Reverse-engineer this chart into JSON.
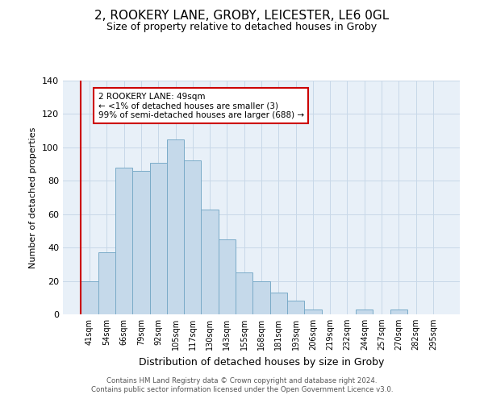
{
  "title": "2, ROOKERY LANE, GROBY, LEICESTER, LE6 0GL",
  "subtitle": "Size of property relative to detached houses in Groby",
  "xlabel": "Distribution of detached houses by size in Groby",
  "ylabel": "Number of detached properties",
  "bar_labels": [
    "41sqm",
    "54sqm",
    "66sqm",
    "79sqm",
    "92sqm",
    "105sqm",
    "117sqm",
    "130sqm",
    "143sqm",
    "155sqm",
    "168sqm",
    "181sqm",
    "193sqm",
    "206sqm",
    "219sqm",
    "232sqm",
    "244sqm",
    "257sqm",
    "270sqm",
    "282sqm",
    "295sqm"
  ],
  "bar_values": [
    20,
    37,
    88,
    86,
    91,
    105,
    92,
    63,
    45,
    25,
    20,
    13,
    8,
    3,
    0,
    0,
    3,
    0,
    3,
    0,
    0
  ],
  "bar_color": "#c5d9ea",
  "bar_edge_color": "#7aabc8",
  "highlight_color": "#cc0000",
  "ylim": [
    0,
    140
  ],
  "yticks": [
    0,
    20,
    40,
    60,
    80,
    100,
    120,
    140
  ],
  "annotation_title": "2 ROOKERY LANE: 49sqm",
  "annotation_line1": "← <1% of detached houses are smaller (3)",
  "annotation_line2": "99% of semi-detached houses are larger (688) →",
  "annotation_box_color": "#ffffff",
  "annotation_box_edge_color": "#cc0000",
  "footer_line1": "Contains HM Land Registry data © Crown copyright and database right 2024.",
  "footer_line2": "Contains public sector information licensed under the Open Government Licence v3.0.",
  "background_color": "#ffffff",
  "axes_bg_color": "#e8f0f8",
  "grid_color": "#c8d8e8"
}
